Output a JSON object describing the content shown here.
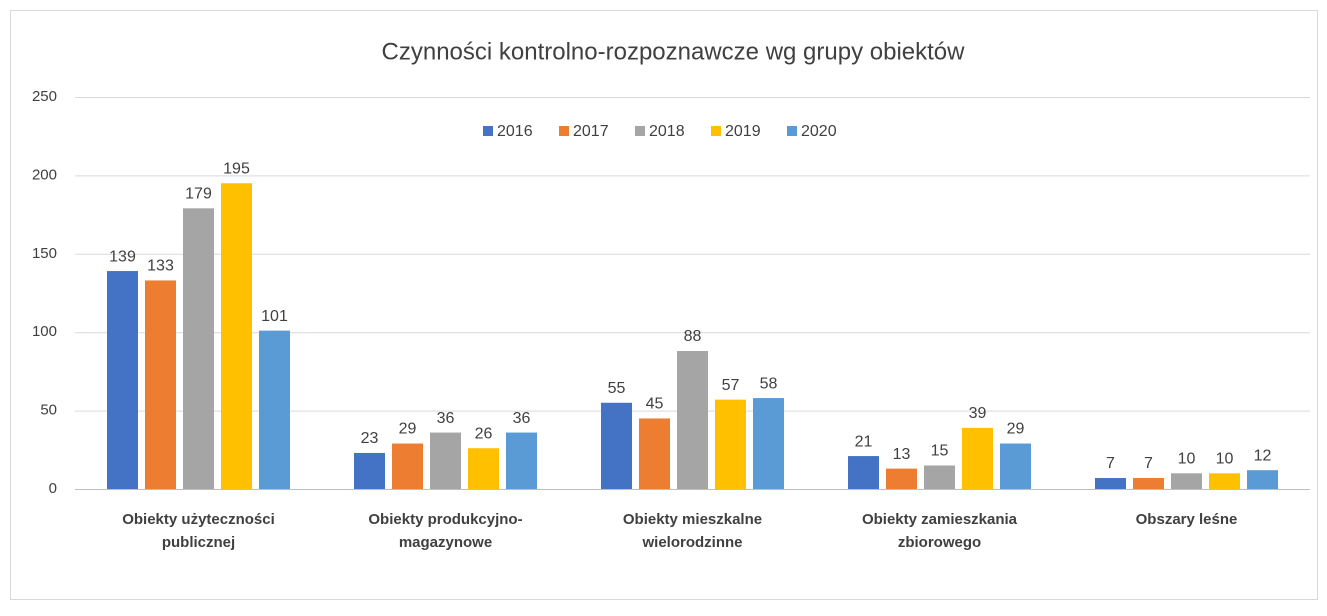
{
  "chart_data": {
    "type": "bar",
    "title": "Czynności kontrolno-rozpoznawcze wg grupy obiektów",
    "categories": [
      [
        "Obiekty użyteczności",
        "publicznej"
      ],
      [
        "Obiekty produkcyjno-",
        "magazynowe"
      ],
      [
        "Obiekty mieszkalne",
        "wielorodzinne"
      ],
      [
        "Obiekty zamieszkania",
        "zbiorowego"
      ],
      [
        "Obszary leśne"
      ]
    ],
    "series": [
      {
        "name": "2016",
        "color": "#4472c4",
        "values": [
          139,
          23,
          55,
          21,
          7
        ]
      },
      {
        "name": "2017",
        "color": "#ed7d31",
        "values": [
          133,
          29,
          45,
          13,
          7
        ]
      },
      {
        "name": "2018",
        "color": "#a5a5a5",
        "values": [
          179,
          36,
          88,
          15,
          10
        ]
      },
      {
        "name": "2019",
        "color": "#ffc000",
        "values": [
          195,
          26,
          57,
          39,
          10
        ]
      },
      {
        "name": "2020",
        "color": "#5b9bd5",
        "values": [
          101,
          36,
          58,
          29,
          12
        ]
      }
    ],
    "ylim": [
      0,
      250
    ],
    "yticks": [
      0,
      50,
      100,
      150,
      200,
      250
    ],
    "grid": true,
    "legend": "top"
  }
}
